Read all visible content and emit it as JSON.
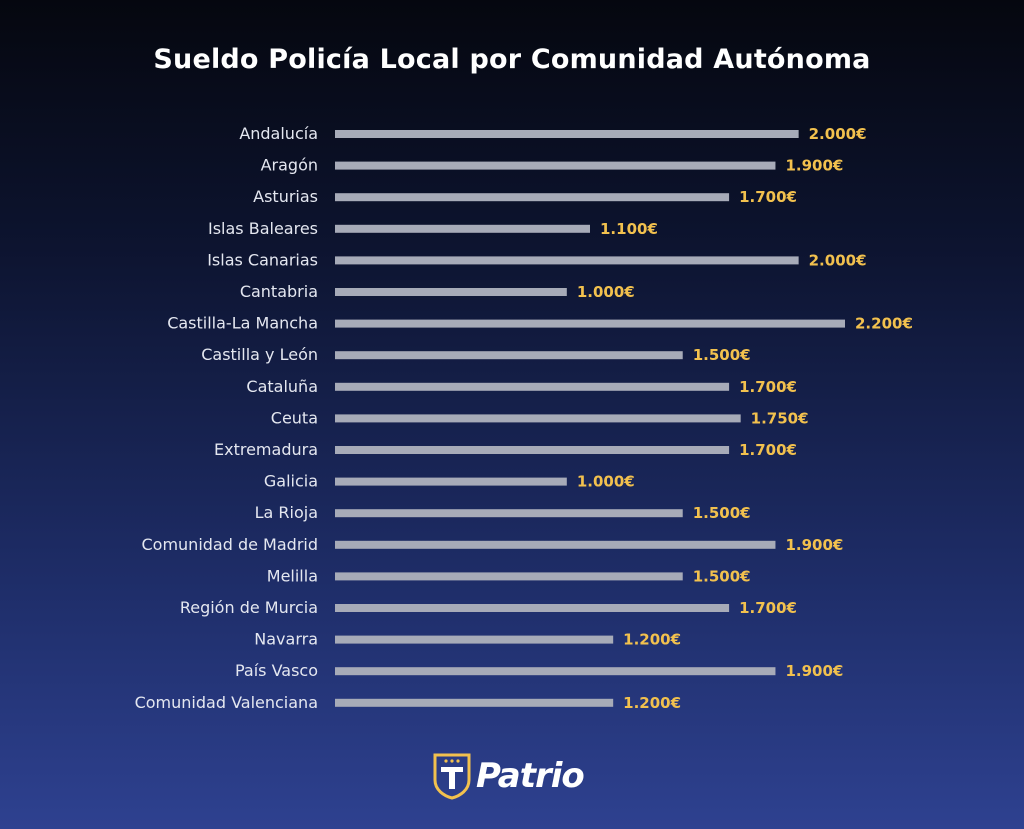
{
  "chart_data": {
    "type": "bar",
    "orientation": "horizontal",
    "title": "Sueldo Policía Local por Comunidad Autónoma",
    "categories": [
      "Andalucía",
      "Aragón",
      "Asturias",
      "Islas Baleares",
      "Islas Canarias",
      "Cantabria",
      "Castilla-La Mancha",
      "Castilla y León",
      "Cataluña",
      "Ceuta",
      "Extremadura",
      "Galicia",
      "La Rioja",
      "Comunidad de Madrid",
      "Melilla",
      "Región de Murcia",
      "Navarra",
      "País Vasco",
      "Comunidad Valenciana"
    ],
    "values": [
      2000,
      1900,
      1700,
      1100,
      2000,
      1000,
      2200,
      1500,
      1700,
      1750,
      1700,
      1000,
      1500,
      1900,
      1500,
      1700,
      1200,
      1900,
      1200
    ],
    "value_labels": [
      "2.000€",
      "1.900€",
      "1.700€",
      "1.100€",
      "2.000€",
      "1.000€",
      "2.200€",
      "1.500€",
      "1.700€",
      "1.750€",
      "1.700€",
      "1.000€",
      "1.500€",
      "1.900€",
      "1.500€",
      "1.700€",
      "1.200€",
      "1.900€",
      "1.200€"
    ],
    "xlabel": "",
    "ylabel": "",
    "xlim": [
      0,
      2200
    ],
    "grid": false,
    "legend": "none"
  },
  "colors": {
    "bar": "#a7abb8",
    "value_label": "#f2c14e",
    "category_label": "#e4e7f0",
    "title": "#ffffff",
    "logo_accent": "#f2c14e"
  },
  "brand": {
    "logo_text": "Patrio",
    "logo_icon": "shield-t-icon"
  }
}
